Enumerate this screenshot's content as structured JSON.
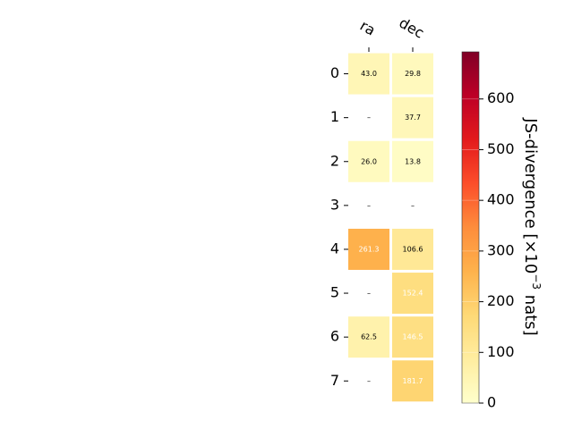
{
  "chart_data": {
    "type": "heatmap",
    "title": "",
    "columns": [
      "ra",
      "dec"
    ],
    "rows": [
      "0",
      "1",
      "2",
      "3",
      "4",
      "5",
      "6",
      "7"
    ],
    "values": [
      [
        43.0,
        29.8
      ],
      [
        null,
        37.7
      ],
      [
        26.0,
        13.8
      ],
      [
        null,
        null
      ],
      [
        261.3,
        106.6
      ],
      [
        null,
        152.4
      ],
      [
        62.5,
        146.5
      ],
      [
        null,
        181.7
      ]
    ],
    "cell_labels": [
      [
        "43.0",
        "29.8"
      ],
      [
        "–",
        "37.7"
      ],
      [
        "26.0",
        "13.8"
      ],
      [
        "–",
        "–"
      ],
      [
        "261.3",
        "106.6"
      ],
      [
        "–",
        "152.4"
      ],
      [
        "62.5",
        "146.5"
      ],
      [
        "–",
        "181.7"
      ]
    ],
    "colorbar": {
      "label": "JS-divergence [×10",
      "label_exponent": "−3",
      "label_suffix": " nats]",
      "range": [
        0,
        693
      ],
      "ticks": [
        0,
        100,
        200,
        300,
        400,
        500,
        600
      ],
      "tick_labels": [
        "0",
        "100",
        "200",
        "300",
        "400",
        "500",
        "600"
      ],
      "colormap": "YlOrRd"
    }
  }
}
